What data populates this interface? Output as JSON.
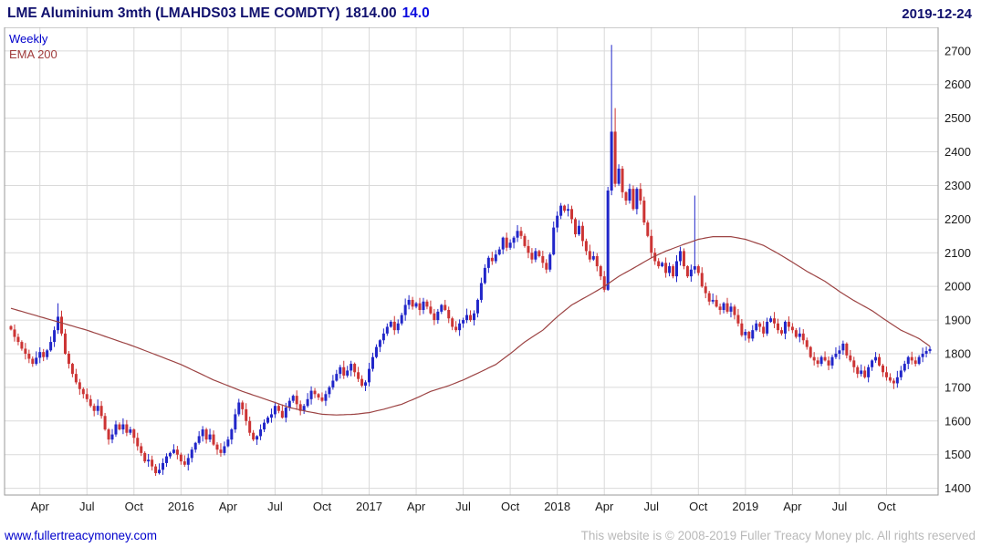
{
  "header": {
    "title": "LME Aluminium 3mth (LMAHDS03 LME COMDTY)",
    "last_price": "1814.00",
    "change": "14.0",
    "date": "2019-12-24"
  },
  "legend": {
    "series": "Weekly",
    "overlay": "EMA 200"
  },
  "footer": {
    "link": "www.fullertreacymoney.com",
    "copyright": "This website is © 2008-2019 Fuller Treacy Money plc. All rights reserved"
  },
  "colors": {
    "up_candle": "#2126c9",
    "down_candle": "#cc3434",
    "ema_line": "#9c4343",
    "grid": "#dadada",
    "plot_border": "#9a9a9a",
    "axis_text": "#1a1a1a",
    "title_text": "#10106e",
    "change_text": "#0a0adf",
    "link_text": "#0000cc",
    "copyright_text": "#b9b9b9"
  },
  "chart_data": {
    "type": "candlestick",
    "title": "LME Aluminium 3mth (LMAHDS03 LME COMDTY)",
    "instrument": "LME Aluminium 3mth",
    "ticker": "LMAHDS03 LME COMDTY",
    "interval": "Weekly",
    "overlay": "EMA 200",
    "last_price": 1814.0,
    "change": 14.0,
    "as_of_date": "2019-12-24",
    "xlabel": "",
    "ylabel": "",
    "grid": true,
    "legend_position": "top-left",
    "ylim": [
      1380,
      2770
    ],
    "y_ticks": [
      1400,
      1500,
      1600,
      1700,
      1800,
      1900,
      2000,
      2100,
      2200,
      2300,
      2400,
      2500,
      2600,
      2700
    ],
    "x_ticks": [
      {
        "i": 8,
        "label": "Apr"
      },
      {
        "i": 21,
        "label": "Jul"
      },
      {
        "i": 34,
        "label": "Oct"
      },
      {
        "i": 47,
        "label": "2016"
      },
      {
        "i": 60,
        "label": "Apr"
      },
      {
        "i": 73,
        "label": "Jul"
      },
      {
        "i": 86,
        "label": "Oct"
      },
      {
        "i": 99,
        "label": "2017"
      },
      {
        "i": 112,
        "label": "Apr"
      },
      {
        "i": 125,
        "label": "Jul"
      },
      {
        "i": 138,
        "label": "Oct"
      },
      {
        "i": 151,
        "label": "2018"
      },
      {
        "i": 164,
        "label": "Apr"
      },
      {
        "i": 177,
        "label": "Jul"
      },
      {
        "i": 190,
        "label": "Oct"
      },
      {
        "i": 203,
        "label": "2019"
      },
      {
        "i": 216,
        "label": "Apr"
      },
      {
        "i": 229,
        "label": "Jul"
      },
      {
        "i": 242,
        "label": "Oct"
      }
    ],
    "weekly_closes": [
      1872,
      1850,
      1835,
      1815,
      1800,
      1785,
      1770,
      1788,
      1805,
      1790,
      1810,
      1835,
      1870,
      1910,
      1860,
      1800,
      1770,
      1740,
      1715,
      1695,
      1680,
      1665,
      1645,
      1630,
      1645,
      1615,
      1575,
      1545,
      1560,
      1590,
      1575,
      1590,
      1565,
      1575,
      1550,
      1525,
      1505,
      1480,
      1485,
      1465,
      1445,
      1455,
      1475,
      1495,
      1505,
      1515,
      1500,
      1480,
      1470,
      1490,
      1515,
      1535,
      1555,
      1575,
      1545,
      1560,
      1530,
      1515,
      1505,
      1525,
      1545,
      1575,
      1620,
      1655,
      1635,
      1600,
      1565,
      1545,
      1555,
      1575,
      1595,
      1610,
      1620,
      1645,
      1630,
      1610,
      1640,
      1660,
      1675,
      1650,
      1630,
      1645,
      1665,
      1690,
      1680,
      1670,
      1660,
      1680,
      1700,
      1720,
      1740,
      1760,
      1735,
      1750,
      1770,
      1745,
      1725,
      1705,
      1715,
      1755,
      1790,
      1820,
      1840,
      1860,
      1880,
      1895,
      1870,
      1890,
      1915,
      1945,
      1960,
      1940,
      1950,
      1930,
      1955,
      1940,
      1920,
      1900,
      1925,
      1945,
      1930,
      1905,
      1880,
      1870,
      1890,
      1900,
      1915,
      1900,
      1920,
      1960,
      2010,
      2055,
      2085,
      2075,
      2095,
      2110,
      2145,
      2115,
      2130,
      2145,
      2165,
      2150,
      2120,
      2100,
      2080,
      2105,
      2090,
      2070,
      2050,
      2095,
      2175,
      2210,
      2240,
      2225,
      2230,
      2200,
      2155,
      2180,
      2135,
      2105,
      2080,
      2090,
      2060,
      2030,
      1990,
      2285,
      2460,
      2305,
      2350,
      2280,
      2255,
      2290,
      2230,
      2290,
      2255,
      2190,
      2150,
      2100,
      2075,
      2060,
      2070,
      2040,
      2060,
      2030,
      2075,
      2105,
      2060,
      2030,
      2050,
      2060,
      2040,
      2000,
      1980,
      1955,
      1960,
      1940,
      1930,
      1950,
      1925,
      1940,
      1915,
      1890,
      1855,
      1865,
      1845,
      1870,
      1890,
      1880,
      1860,
      1895,
      1905,
      1890,
      1870,
      1860,
      1895,
      1880,
      1870,
      1850,
      1860,
      1840,
      1820,
      1790,
      1780,
      1770,
      1790,
      1780,
      1765,
      1790,
      1800,
      1810,
      1830,
      1795,
      1780,
      1760,
      1740,
      1750,
      1730,
      1760,
      1780,
      1790,
      1765,
      1745,
      1730,
      1720,
      1712,
      1730,
      1750,
      1770,
      1790,
      1780,
      1770,
      1790,
      1800,
      1808,
      1814
    ],
    "spike_highs": {
      "13": 1950,
      "166": 2718,
      "167": 2530,
      "189": 2270
    },
    "ema_points": [
      [
        0,
        1935
      ],
      [
        8,
        1910
      ],
      [
        21,
        1870
      ],
      [
        34,
        1822
      ],
      [
        47,
        1768
      ],
      [
        56,
        1722
      ],
      [
        64,
        1688
      ],
      [
        73,
        1655
      ],
      [
        77,
        1640
      ],
      [
        82,
        1628
      ],
      [
        86,
        1620
      ],
      [
        90,
        1618
      ],
      [
        95,
        1620
      ],
      [
        99,
        1625
      ],
      [
        103,
        1635
      ],
      [
        108,
        1650
      ],
      [
        112,
        1668
      ],
      [
        116,
        1688
      ],
      [
        121,
        1705
      ],
      [
        125,
        1722
      ],
      [
        129,
        1742
      ],
      [
        134,
        1768
      ],
      [
        138,
        1800
      ],
      [
        142,
        1835
      ],
      [
        147,
        1870
      ],
      [
        151,
        1910
      ],
      [
        155,
        1945
      ],
      [
        160,
        1975
      ],
      [
        164,
        2000
      ],
      [
        168,
        2030
      ],
      [
        173,
        2060
      ],
      [
        177,
        2085
      ],
      [
        181,
        2105
      ],
      [
        186,
        2125
      ],
      [
        190,
        2140
      ],
      [
        194,
        2148
      ],
      [
        199,
        2148
      ],
      [
        203,
        2140
      ],
      [
        208,
        2122
      ],
      [
        212,
        2098
      ],
      [
        216,
        2072
      ],
      [
        220,
        2045
      ],
      [
        225,
        2015
      ],
      [
        229,
        1985
      ],
      [
        233,
        1958
      ],
      [
        238,
        1928
      ],
      [
        242,
        1898
      ],
      [
        246,
        1870
      ],
      [
        251,
        1845
      ],
      [
        254,
        1822
      ]
    ]
  }
}
